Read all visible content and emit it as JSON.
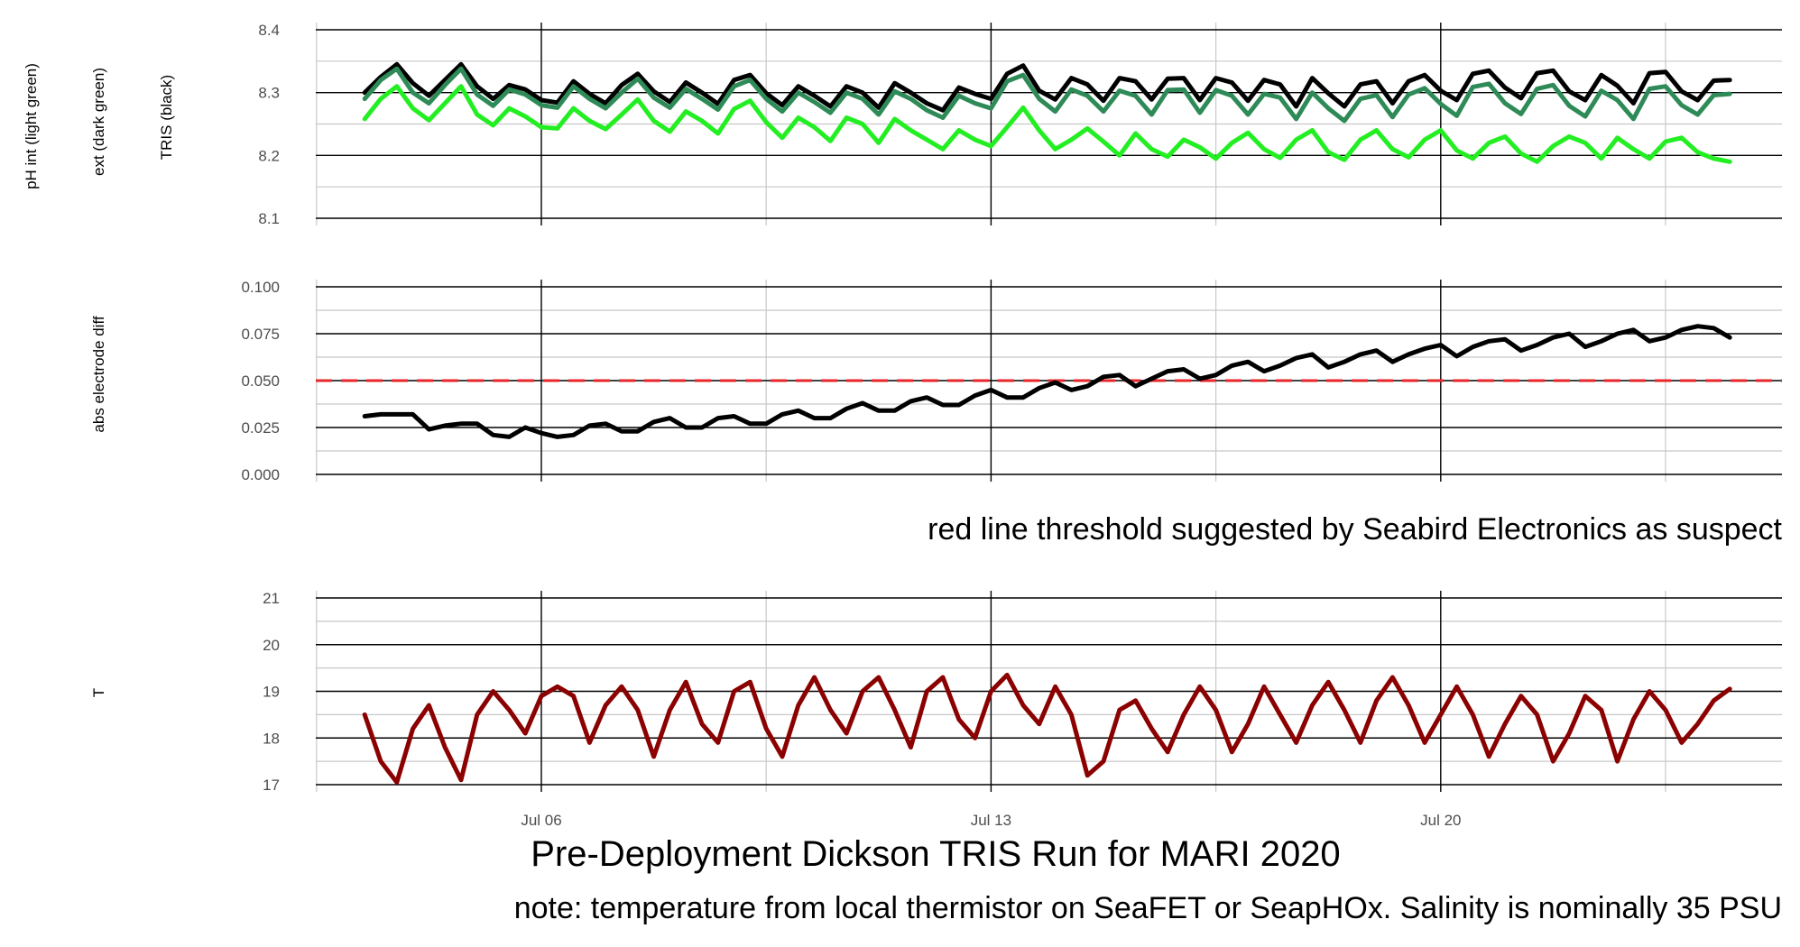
{
  "chart_data": [
    {
      "type": "line",
      "title": "",
      "xlabel": "",
      "ylabels": [
        "pH int (light green)",
        "ext (dark green)",
        "TRIS (black)"
      ],
      "ylim": [
        8.1,
        8.4
      ],
      "yticks": [
        "8.1",
        "8.2",
        "8.3",
        "8.4"
      ],
      "grid": true,
      "series": [
        {
          "name": "TRIS",
          "color": "#000000",
          "x": [
            3.25,
            3.5,
            3.75,
            4.0,
            4.25,
            4.5,
            4.75,
            5.0,
            5.25,
            5.5,
            5.75,
            6.0,
            6.25,
            6.5,
            6.75,
            7.0,
            7.25,
            7.5,
            7.75,
            8.0,
            8.25,
            8.5,
            8.75,
            9.0,
            9.25,
            9.5,
            9.75,
            10.0,
            10.25,
            10.5,
            10.75,
            11.0,
            11.25,
            11.5,
            11.75,
            12.0,
            12.25,
            12.5,
            12.75,
            13.0,
            13.25,
            13.5,
            13.75,
            14.0,
            14.25,
            14.5,
            14.75,
            15.0,
            15.25,
            15.5,
            15.75,
            16.0,
            16.25,
            16.5,
            16.75,
            17.0,
            17.25,
            17.5,
            17.75,
            18.0,
            18.25,
            18.5,
            18.75,
            19.0,
            19.25,
            19.5,
            19.75,
            20.0,
            20.25,
            20.5,
            20.75,
            21.0,
            21.25,
            21.5,
            21.75,
            22.0,
            22.25,
            22.5,
            22.75,
            23.0,
            23.25,
            23.5,
            23.75,
            24.0,
            24.25,
            24.5
          ],
          "values": [
            8.3,
            8.325,
            8.345,
            8.315,
            8.295,
            8.32,
            8.345,
            8.31,
            8.29,
            8.312,
            8.305,
            8.288,
            8.284,
            8.318,
            8.298,
            8.283,
            8.312,
            8.33,
            8.302,
            8.285,
            8.316,
            8.3,
            8.282,
            8.32,
            8.328,
            8.299,
            8.28,
            8.31,
            8.295,
            8.278,
            8.31,
            8.3,
            8.276,
            8.315,
            8.3,
            8.283,
            8.272,
            8.308,
            8.298,
            8.29,
            8.33,
            8.343,
            8.303,
            8.289,
            8.323,
            8.313,
            8.287,
            8.323,
            8.318,
            8.289,
            8.322,
            8.323,
            8.288,
            8.323,
            8.316,
            8.287,
            8.32,
            8.313,
            8.278,
            8.323,
            8.299,
            8.278,
            8.313,
            8.318,
            8.283,
            8.318,
            8.328,
            8.303,
            8.288,
            8.33,
            8.335,
            8.308,
            8.291,
            8.331,
            8.335,
            8.302,
            8.288,
            8.328,
            8.311,
            8.283,
            8.331,
            8.333,
            8.302,
            8.288,
            8.319,
            8.32
          ]
        },
        {
          "name": "ext",
          "color": "#2e8b57",
          "x": [
            3.25,
            3.5,
            3.75,
            4.0,
            4.25,
            4.5,
            4.75,
            5.0,
            5.25,
            5.5,
            5.75,
            6.0,
            6.25,
            6.5,
            6.75,
            7.0,
            7.25,
            7.5,
            7.75,
            8.0,
            8.25,
            8.5,
            8.75,
            9.0,
            9.25,
            9.5,
            9.75,
            10.0,
            10.25,
            10.5,
            10.75,
            11.0,
            11.25,
            11.5,
            11.75,
            12.0,
            12.25,
            12.5,
            12.75,
            13.0,
            13.25,
            13.5,
            13.75,
            14.0,
            14.25,
            14.5,
            14.75,
            15.0,
            15.25,
            15.5,
            15.75,
            16.0,
            16.25,
            16.5,
            16.75,
            17.0,
            17.25,
            17.5,
            17.75,
            18.0,
            18.25,
            18.5,
            18.75,
            19.0,
            19.25,
            19.5,
            19.75,
            20.0,
            20.25,
            20.5,
            20.75,
            21.0,
            21.25,
            21.5,
            21.75,
            22.0,
            22.25,
            22.5,
            22.75,
            23.0,
            23.25,
            23.5,
            23.75,
            24.0,
            24.25,
            24.5
          ],
          "values": [
            8.29,
            8.32,
            8.338,
            8.3,
            8.283,
            8.312,
            8.338,
            8.297,
            8.279,
            8.305,
            8.297,
            8.28,
            8.276,
            8.31,
            8.29,
            8.275,
            8.3,
            8.322,
            8.292,
            8.276,
            8.306,
            8.29,
            8.273,
            8.31,
            8.32,
            8.29,
            8.27,
            8.3,
            8.285,
            8.268,
            8.3,
            8.29,
            8.265,
            8.302,
            8.29,
            8.272,
            8.26,
            8.295,
            8.283,
            8.275,
            8.318,
            8.328,
            8.29,
            8.27,
            8.305,
            8.295,
            8.27,
            8.303,
            8.295,
            8.265,
            8.304,
            8.305,
            8.268,
            8.304,
            8.295,
            8.265,
            8.298,
            8.292,
            8.258,
            8.3,
            8.275,
            8.255,
            8.29,
            8.296,
            8.261,
            8.297,
            8.307,
            8.282,
            8.263,
            8.309,
            8.314,
            8.283,
            8.266,
            8.306,
            8.312,
            8.279,
            8.262,
            8.303,
            8.288,
            8.258,
            8.306,
            8.31,
            8.28,
            8.265,
            8.296,
            8.298
          ]
        },
        {
          "name": "pH int",
          "color": "#22ee22",
          "x": [
            3.25,
            3.5,
            3.75,
            4.0,
            4.25,
            4.5,
            4.75,
            5.0,
            5.25,
            5.5,
            5.75,
            6.0,
            6.25,
            6.5,
            6.75,
            7.0,
            7.25,
            7.5,
            7.75,
            8.0,
            8.25,
            8.5,
            8.75,
            9.0,
            9.25,
            9.5,
            9.75,
            10.0,
            10.25,
            10.5,
            10.75,
            11.0,
            11.25,
            11.5,
            11.75,
            12.0,
            12.25,
            12.5,
            12.75,
            13.0,
            13.25,
            13.5,
            13.75,
            14.0,
            14.25,
            14.5,
            14.75,
            15.0,
            15.25,
            15.5,
            15.75,
            16.0,
            16.25,
            16.5,
            16.75,
            17.0,
            17.25,
            17.5,
            17.75,
            18.0,
            18.25,
            18.5,
            18.75,
            19.0,
            19.25,
            19.5,
            19.75,
            20.0,
            20.25,
            20.5,
            20.75,
            21.0,
            21.25,
            21.5,
            21.75,
            22.0,
            22.25,
            22.5,
            22.75,
            23.0,
            23.25,
            23.5,
            23.75,
            24.0,
            24.25,
            24.5
          ],
          "values": [
            8.258,
            8.29,
            8.31,
            8.275,
            8.256,
            8.283,
            8.31,
            8.265,
            8.248,
            8.275,
            8.262,
            8.245,
            8.243,
            8.275,
            8.255,
            8.242,
            8.265,
            8.289,
            8.255,
            8.238,
            8.27,
            8.255,
            8.235,
            8.274,
            8.287,
            8.253,
            8.228,
            8.26,
            8.245,
            8.223,
            8.26,
            8.25,
            8.22,
            8.258,
            8.24,
            8.225,
            8.21,
            8.24,
            8.225,
            8.215,
            8.245,
            8.276,
            8.24,
            8.21,
            8.225,
            8.243,
            8.222,
            8.2,
            8.235,
            8.21,
            8.198,
            8.225,
            8.213,
            8.195,
            8.22,
            8.236,
            8.21,
            8.196,
            8.225,
            8.24,
            8.205,
            8.193,
            8.225,
            8.24,
            8.21,
            8.197,
            8.225,
            8.24,
            8.208,
            8.195,
            8.22,
            8.23,
            8.203,
            8.19,
            8.215,
            8.23,
            8.22,
            8.195,
            8.228,
            8.21,
            8.195,
            8.222,
            8.228,
            8.205,
            8.195,
            8.19
          ]
        }
      ]
    },
    {
      "type": "line",
      "title": "",
      "ylabel": "abs electrode diff",
      "ylim": [
        0.0,
        0.1
      ],
      "yticks": [
        "0.000",
        "0.025",
        "0.050",
        "0.075",
        "0.100"
      ],
      "grid": true,
      "threshold": {
        "value": 0.05,
        "color": "#e8262b",
        "style": "dashed"
      },
      "note": "red line threshold suggested by Seabird Electronics as suspect",
      "series": [
        {
          "name": "",
          "color": "#000000",
          "x": [
            3.25,
            3.5,
            3.75,
            4.0,
            4.25,
            4.5,
            4.75,
            5.0,
            5.25,
            5.5,
            5.75,
            6.0,
            6.25,
            6.5,
            6.75,
            7.0,
            7.25,
            7.5,
            7.75,
            8.0,
            8.25,
            8.5,
            8.75,
            9.0,
            9.25,
            9.5,
            9.75,
            10.0,
            10.25,
            10.5,
            10.75,
            11.0,
            11.25,
            11.5,
            11.75,
            12.0,
            12.25,
            12.5,
            12.75,
            13.0,
            13.25,
            13.5,
            13.75,
            14.0,
            14.25,
            14.5,
            14.75,
            15.0,
            15.25,
            15.5,
            15.75,
            16.0,
            16.25,
            16.5,
            16.75,
            17.0,
            17.25,
            17.5,
            17.75,
            18.0,
            18.25,
            18.5,
            18.75,
            19.0,
            19.25,
            19.5,
            19.75,
            20.0,
            20.25,
            20.5,
            20.75,
            21.0,
            21.25,
            21.5,
            21.75,
            22.0,
            22.25,
            22.5,
            22.75,
            23.0,
            23.25,
            23.5,
            23.75,
            24.0,
            24.25,
            24.5
          ],
          "values": [
            0.031,
            0.032,
            0.032,
            0.032,
            0.024,
            0.026,
            0.027,
            0.027,
            0.021,
            0.02,
            0.025,
            0.022,
            0.02,
            0.021,
            0.026,
            0.027,
            0.023,
            0.023,
            0.028,
            0.03,
            0.025,
            0.025,
            0.03,
            0.031,
            0.027,
            0.027,
            0.032,
            0.034,
            0.03,
            0.03,
            0.035,
            0.038,
            0.034,
            0.034,
            0.039,
            0.041,
            0.037,
            0.037,
            0.042,
            0.045,
            0.041,
            0.041,
            0.046,
            0.049,
            0.045,
            0.047,
            0.052,
            0.053,
            0.047,
            0.051,
            0.055,
            0.056,
            0.051,
            0.053,
            0.058,
            0.06,
            0.055,
            0.058,
            0.062,
            0.064,
            0.057,
            0.06,
            0.064,
            0.066,
            0.06,
            0.064,
            0.067,
            0.069,
            0.063,
            0.068,
            0.071,
            0.072,
            0.066,
            0.069,
            0.073,
            0.075,
            0.068,
            0.071,
            0.075,
            0.077,
            0.071,
            0.073,
            0.077,
            0.079,
            0.078,
            0.073
          ]
        }
      ]
    },
    {
      "type": "line",
      "title": "Pre-Deployment Dickson TRIS Run for MARI 2020",
      "subtitle": "note: temperature from local thermistor on SeaFET or SeapHOx. Salinity is nominally 35 PSU",
      "ylabel": "T",
      "ylim": [
        17,
        21
      ],
      "yticks": [
        "17",
        "18",
        "19",
        "20",
        "21"
      ],
      "xticks": [
        "Jul 06",
        "Jul 13",
        "Jul 20"
      ],
      "grid": true,
      "series": [
        {
          "name": "",
          "color": "#8b0000",
          "x": [
            3.25,
            3.5,
            3.75,
            4.0,
            4.25,
            4.5,
            4.75,
            5.0,
            5.25,
            5.5,
            5.75,
            6.0,
            6.25,
            6.5,
            6.75,
            7.0,
            7.25,
            7.5,
            7.75,
            8.0,
            8.25,
            8.5,
            8.75,
            9.0,
            9.25,
            9.5,
            9.75,
            10.0,
            10.25,
            10.5,
            10.75,
            11.0,
            11.25,
            11.5,
            11.75,
            12.0,
            12.25,
            12.5,
            12.75,
            13.0,
            13.25,
            13.5,
            13.75,
            14.0,
            14.25,
            14.5,
            14.75,
            15.0,
            15.25,
            15.5,
            15.75,
            16.0,
            16.25,
            16.5,
            16.75,
            17.0,
            17.25,
            17.5,
            17.75,
            18.0,
            18.25,
            18.5,
            18.75,
            19.0,
            19.25,
            19.5,
            19.75,
            20.0,
            20.25,
            20.5,
            20.75,
            21.0,
            21.25,
            21.5,
            21.75,
            22.0,
            22.25,
            22.5,
            22.75,
            23.0,
            23.25,
            23.5,
            23.75,
            24.0,
            24.25,
            24.5
          ],
          "values": [
            18.5,
            17.5,
            17.05,
            18.2,
            18.7,
            17.8,
            17.1,
            18.5,
            19.0,
            18.6,
            18.1,
            18.9,
            19.1,
            18.9,
            17.9,
            18.7,
            19.1,
            18.6,
            17.6,
            18.6,
            19.2,
            18.3,
            17.9,
            19.0,
            19.2,
            18.2,
            17.6,
            18.7,
            19.3,
            18.6,
            18.1,
            19.0,
            19.3,
            18.6,
            17.8,
            19.0,
            19.3,
            18.4,
            18.0,
            19.0,
            19.35,
            18.7,
            18.3,
            19.1,
            18.5,
            17.2,
            17.5,
            18.6,
            18.8,
            18.2,
            17.7,
            18.5,
            19.1,
            18.6,
            17.7,
            18.3,
            19.1,
            18.5,
            17.9,
            18.7,
            19.2,
            18.6,
            17.9,
            18.8,
            19.3,
            18.7,
            17.9,
            18.5,
            19.1,
            18.5,
            17.6,
            18.3,
            18.9,
            18.5,
            17.5,
            18.1,
            18.9,
            18.6,
            17.5,
            18.4,
            19.0,
            18.6,
            17.9,
            18.3,
            18.8,
            19.05
          ]
        }
      ]
    }
  ]
}
